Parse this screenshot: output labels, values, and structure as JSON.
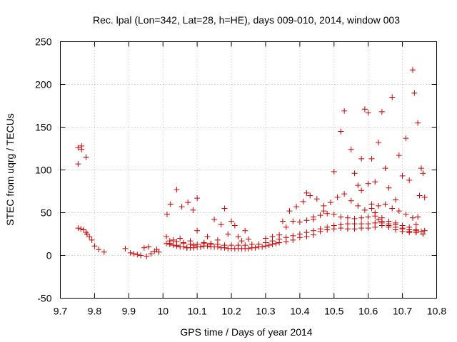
{
  "chart_data": {
    "type": "scatter",
    "title": "Rec. lpal (Lon=342, Lat=28, h=HE), days 009-010, 2014, window 003",
    "xlabel": "GPS time / Days of year 2014",
    "ylabel": "STEC from uqrg / TECUs",
    "xlim": [
      9.7,
      10.8
    ],
    "ylim": [
      -50,
      250
    ],
    "xticks": [
      "9.7",
      "9.8",
      "9.9",
      "10",
      "10.1",
      "10.2",
      "10.3",
      "10.4",
      "10.5",
      "10.6",
      "10.7",
      "10.8"
    ],
    "xtick_values": [
      9.7,
      9.8,
      9.9,
      10.0,
      10.1,
      10.2,
      10.3,
      10.4,
      10.5,
      10.6,
      10.7,
      10.8
    ],
    "yticks": [
      "-50",
      "0",
      "50",
      "100",
      "150",
      "200",
      "250"
    ],
    "ytick_values": [
      -50,
      0,
      50,
      100,
      150,
      200,
      250
    ],
    "grid": true,
    "marker": "+",
    "color": "#cc0000",
    "points": [
      [
        9.752,
        126
      ],
      [
        9.752,
        107
      ],
      [
        9.762,
        128
      ],
      [
        9.762,
        124
      ],
      [
        9.775,
        115
      ],
      [
        9.752,
        32
      ],
      [
        9.76,
        31
      ],
      [
        9.768,
        30
      ],
      [
        9.775,
        27
      ],
      [
        9.778,
        25
      ],
      [
        9.785,
        22
      ],
      [
        9.792,
        18
      ],
      [
        9.8,
        11
      ],
      [
        9.812,
        7
      ],
      [
        9.828,
        4
      ],
      [
        9.89,
        8
      ],
      [
        9.905,
        3
      ],
      [
        9.915,
        2
      ],
      [
        9.925,
        1
      ],
      [
        9.935,
        0
      ],
      [
        9.945,
        9
      ],
      [
        9.952,
        -1
      ],
      [
        9.958,
        10
      ],
      [
        9.965,
        2
      ],
      [
        9.975,
        5
      ],
      [
        9.982,
        7
      ],
      [
        9.988,
        4
      ],
      [
        10.012,
        48
      ],
      [
        10.022,
        60
      ],
      [
        10.04,
        77
      ],
      [
        10.055,
        57
      ],
      [
        10.073,
        62
      ],
      [
        10.088,
        53
      ],
      [
        10.1,
        67
      ],
      [
        10.18,
        55
      ],
      [
        10.01,
        22
      ],
      [
        10.02,
        14
      ],
      [
        10.03,
        18
      ],
      [
        10.04,
        12
      ],
      [
        10.05,
        20
      ],
      [
        10.06,
        15
      ],
      [
        10.07,
        9
      ],
      [
        10.08,
        17
      ],
      [
        10.09,
        12
      ],
      [
        10.1,
        29
      ],
      [
        10.11,
        10
      ],
      [
        10.12,
        15
      ],
      [
        10.13,
        22
      ],
      [
        10.14,
        13
      ],
      [
        10.15,
        42
      ],
      [
        10.16,
        18
      ],
      [
        10.17,
        36
      ],
      [
        10.19,
        25
      ],
      [
        10.2,
        40
      ],
      [
        10.21,
        35
      ],
      [
        10.22,
        22
      ],
      [
        10.23,
        17
      ],
      [
        10.24,
        29
      ],
      [
        10.25,
        19
      ],
      [
        10.01,
        14
      ],
      [
        10.02,
        13
      ],
      [
        10.03,
        12
      ],
      [
        10.04,
        11
      ],
      [
        10.05,
        10
      ],
      [
        10.06,
        10
      ],
      [
        10.07,
        9
      ],
      [
        10.08,
        9
      ],
      [
        10.09,
        9
      ],
      [
        10.1,
        10
      ],
      [
        10.11,
        10
      ],
      [
        10.12,
        11
      ],
      [
        10.13,
        11
      ],
      [
        10.14,
        10
      ],
      [
        10.15,
        10
      ],
      [
        10.16,
        10
      ],
      [
        10.17,
        9
      ],
      [
        10.18,
        9
      ],
      [
        10.19,
        8
      ],
      [
        10.2,
        8
      ],
      [
        10.21,
        8
      ],
      [
        10.22,
        8
      ],
      [
        10.23,
        8
      ],
      [
        10.24,
        8
      ],
      [
        10.25,
        8
      ],
      [
        10.26,
        9
      ],
      [
        10.27,
        9
      ],
      [
        10.28,
        10
      ],
      [
        10.29,
        10
      ],
      [
        10.3,
        11
      ],
      [
        10.31,
        12
      ],
      [
        10.32,
        13
      ],
      [
        10.33,
        14
      ],
      [
        10.34,
        15
      ],
      [
        10.02,
        17
      ],
      [
        10.04,
        16
      ],
      [
        10.06,
        14
      ],
      [
        10.08,
        13
      ],
      [
        10.1,
        13
      ],
      [
        10.12,
        14
      ],
      [
        10.14,
        14
      ],
      [
        10.16,
        13
      ],
      [
        10.18,
        12
      ],
      [
        10.2,
        12
      ],
      [
        10.22,
        12
      ],
      [
        10.24,
        12
      ],
      [
        10.26,
        13
      ],
      [
        10.28,
        13
      ],
      [
        10.3,
        15
      ],
      [
        10.32,
        17
      ],
      [
        10.34,
        19
      ],
      [
        10.36,
        21
      ],
      [
        10.38,
        23
      ],
      [
        10.4,
        25
      ],
      [
        10.42,
        27
      ],
      [
        10.44,
        29
      ],
      [
        10.46,
        31
      ],
      [
        10.48,
        33
      ],
      [
        10.5,
        35
      ],
      [
        10.52,
        36
      ],
      [
        10.54,
        37
      ],
      [
        10.56,
        37
      ],
      [
        10.58,
        37
      ],
      [
        10.6,
        37
      ],
      [
        10.62,
        38
      ],
      [
        10.64,
        38
      ],
      [
        10.66,
        37
      ],
      [
        10.68,
        36
      ],
      [
        10.7,
        32
      ],
      [
        10.72,
        30
      ],
      [
        10.74,
        29
      ],
      [
        10.3,
        20
      ],
      [
        10.32,
        22
      ],
      [
        10.34,
        24
      ],
      [
        10.36,
        33
      ],
      [
        10.38,
        40
      ],
      [
        10.4,
        39
      ],
      [
        10.42,
        41
      ],
      [
        10.44,
        42
      ],
      [
        10.46,
        47
      ],
      [
        10.48,
        49
      ],
      [
        10.5,
        48
      ],
      [
        10.52,
        45
      ],
      [
        10.54,
        44
      ],
      [
        10.56,
        43
      ],
      [
        10.58,
        44
      ],
      [
        10.6,
        45
      ],
      [
        10.62,
        46
      ],
      [
        10.64,
        44
      ],
      [
        10.66,
        40
      ],
      [
        10.68,
        38
      ],
      [
        10.7,
        35
      ],
      [
        10.72,
        33
      ],
      [
        10.74,
        30
      ],
      [
        10.35,
        40
      ],
      [
        10.37,
        52
      ],
      [
        10.39,
        57
      ],
      [
        10.41,
        63
      ],
      [
        10.43,
        70
      ],
      [
        10.45,
        66
      ],
      [
        10.47,
        58
      ],
      [
        10.49,
        62
      ],
      [
        10.51,
        68
      ],
      [
        10.53,
        72
      ],
      [
        10.55,
        64
      ],
      [
        10.57,
        58
      ],
      [
        10.59,
        53
      ],
      [
        10.61,
        55
      ],
      [
        10.63,
        58
      ],
      [
        10.65,
        60
      ],
      [
        10.67,
        55
      ],
      [
        10.69,
        52
      ],
      [
        10.71,
        48
      ],
      [
        10.73,
        44
      ],
      [
        10.42,
        73
      ],
      [
        10.44,
        45
      ],
      [
        10.47,
        52
      ],
      [
        10.5,
        98
      ],
      [
        10.52,
        145
      ],
      [
        10.53,
        169
      ],
      [
        10.55,
        124
      ],
      [
        10.56,
        96
      ],
      [
        10.57,
        82
      ],
      [
        10.58,
        76
      ],
      [
        10.59,
        171
      ],
      [
        10.6,
        167
      ],
      [
        10.61,
        113
      ],
      [
        10.62,
        86
      ],
      [
        10.63,
        132
      ],
      [
        10.64,
        168
      ],
      [
        10.65,
        102
      ],
      [
        10.66,
        79
      ],
      [
        10.67,
        185
      ],
      [
        10.68,
        65
      ],
      [
        10.69,
        117
      ],
      [
        10.7,
        93
      ],
      [
        10.71,
        137
      ],
      [
        10.72,
        88
      ],
      [
        10.73,
        217
      ],
      [
        10.735,
        190
      ],
      [
        10.745,
        155
      ],
      [
        10.75,
        70
      ],
      [
        10.755,
        102
      ],
      [
        10.76,
        96
      ],
      [
        10.765,
        68
      ],
      [
        10.745,
        45
      ],
      [
        10.74,
        36
      ],
      [
        10.58,
        113
      ],
      [
        10.6,
        84
      ],
      [
        10.61,
        60
      ],
      [
        10.62,
        50
      ],
      [
        10.63,
        42
      ],
      [
        10.64,
        40
      ],
      [
        10.66,
        35
      ],
      [
        10.68,
        33
      ],
      [
        10.7,
        31
      ],
      [
        10.72,
        28
      ],
      [
        10.74,
        27
      ],
      [
        10.755,
        28
      ],
      [
        10.76,
        25
      ],
      [
        10.765,
        29
      ],
      [
        10.36,
        16
      ],
      [
        10.38,
        18
      ],
      [
        10.4,
        21
      ],
      [
        10.42,
        22
      ],
      [
        10.44,
        24
      ],
      [
        10.46,
        28
      ],
      [
        10.48,
        30
      ],
      [
        10.5,
        31
      ],
      [
        10.52,
        32
      ],
      [
        10.54,
        31
      ],
      [
        10.56,
        31
      ],
      [
        10.58,
        32
      ],
      [
        10.6,
        32
      ],
      [
        10.62,
        33
      ],
      [
        10.64,
        35
      ],
      [
        10.66,
        33
      ],
      [
        10.68,
        30
      ],
      [
        10.7,
        28
      ],
      [
        10.72,
        27
      ],
      [
        10.74,
        27
      ]
    ]
  }
}
